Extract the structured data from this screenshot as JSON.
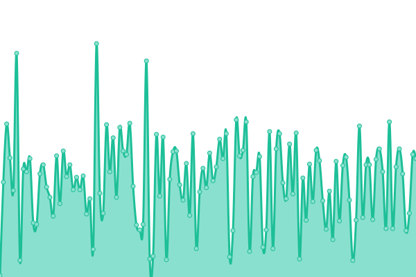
{
  "chart_data": {
    "type": "area",
    "title": "",
    "xlabel": "",
    "ylabel": "",
    "xlim": [
      0,
      125
    ],
    "ylim": [
      0,
      400
    ],
    "grid": false,
    "legend": "none",
    "colors": {
      "line": "#1dbf98",
      "fill": "#8ae0ce",
      "point_fill": "#8ae0ce",
      "point_stroke": "#1dbf98"
    },
    "values": [
      2,
      137,
      221,
      172,
      125,
      323,
      24,
      156,
      152,
      171,
      78,
      76,
      149,
      162,
      130,
      115,
      88,
      175,
      106,
      182,
      145,
      162,
      126,
      144,
      126,
      146,
      91,
      113,
      40,
      337,
      121,
      92,
      220,
      152,
      201,
      115,
      216,
      182,
      177,
      222,
      131,
      75,
      68,
      76,
      312,
      26,
      30,
      206,
      117,
      202,
      25,
      141,
      181,
      182,
      133,
      111,
      164,
      89,
      207,
      41,
      123,
      157,
      129,
      179,
      139,
      159,
      199,
      171,
      207,
      29,
      67,
      227,
      175,
      183,
      224,
      37,
      145,
      151,
      174,
      43,
      68,
      210,
      41,
      185,
      207,
      136,
      113,
      192,
      120,
      208,
      26,
      143,
      82,
      163,
      109,
      183,
      168,
      110,
      69,
      124,
      54,
      167,
      81,
      161,
      173,
      111,
      24,
      82,
      218,
      86,
      162,
      162,
      83,
      170,
      185,
      152,
      70,
      224,
      70,
      159,
      185,
      149,
      67,
      92,
      177,
      171
    ]
  }
}
